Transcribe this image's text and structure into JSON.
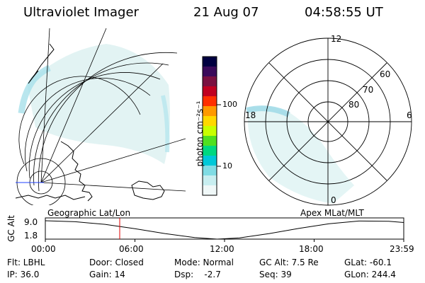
{
  "header": {
    "instrument": "Ultraviolet Imager",
    "date": "21 Aug 07",
    "time": "04:58:55 UT"
  },
  "geo_panel": {
    "label": "Geographic Lat/Lon"
  },
  "polar_panel": {
    "label": "Apex MLat/MLT",
    "mlt_labels": [
      "12",
      "18",
      "6",
      "0"
    ],
    "mlat_labels": [
      "60",
      "70",
      "80"
    ]
  },
  "colorbar": {
    "unit_label": "photon cm⁻²s⁻¹",
    "tick_labels": [
      "100",
      "10"
    ],
    "colors": [
      "#000040",
      "#3a0a5a",
      "#7a1040",
      "#c00020",
      "#ff3000",
      "#ff9900",
      "#ffd800",
      "#c8ff00",
      "#50e020",
      "#00d880",
      "#00c8d8",
      "#80dce4",
      "#c8eef0",
      "#f0f8f8"
    ]
  },
  "chart_data": {
    "type": "line",
    "ylabel": "GC Alt",
    "y_ticks": [
      "9.0",
      "1.8"
    ],
    "ylim": [
      1.8,
      9.0
    ],
    "x_ticks": [
      "00:00",
      "06:00",
      "12:00",
      "18:00",
      "23:59"
    ],
    "x_hours": [
      0,
      2,
      4,
      6,
      8,
      10,
      11.5,
      13,
      15,
      17,
      19,
      21,
      23,
      24
    ],
    "y_values": [
      9.0,
      8.6,
      7.6,
      5.9,
      4.0,
      2.4,
      1.8,
      2.3,
      4.0,
      6.0,
      7.8,
      8.9,
      8.8,
      8.3
    ],
    "current_time_hours": 4.98,
    "current_marker_color": "#e00000"
  },
  "status": {
    "filter": "Flt: LBHL",
    "door": "Door: Closed",
    "mode": "Mode: Normal",
    "gc_alt": "GC Alt: 7.5 Re",
    "glat": "GLat: -60.1",
    "ip": "IP: 36.0",
    "gain": "Gain: 14",
    "dsp": "Dsp:    -2.7",
    "seq": "Seq: 39",
    "glon": "GLon: 244.4"
  }
}
